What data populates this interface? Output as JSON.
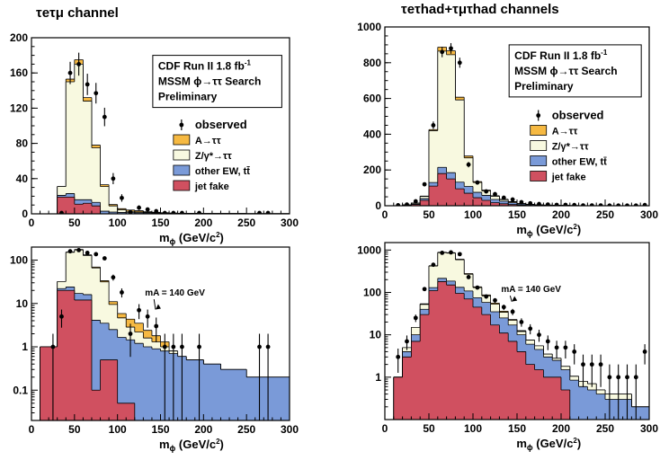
{
  "chart_data": [
    {
      "id": "top_left",
      "type": "area",
      "title": "τeτμ channel",
      "xlabel": "mϕ (GeV/c²)",
      "ylabel": "",
      "xlim": [
        0,
        300
      ],
      "ylim": [
        0,
        200
      ],
      "yscale": "linear",
      "xticks": [
        "0",
        "50",
        "100",
        "150",
        "200",
        "250",
        "300"
      ],
      "yticks": [
        "0",
        "40",
        "80",
        "120",
        "160",
        "200"
      ],
      "bin_edges": [
        0,
        10,
        20,
        30,
        40,
        50,
        60,
        70,
        80,
        90,
        100,
        110,
        120,
        130,
        140,
        150,
        160,
        170,
        180,
        190,
        200,
        210,
        220,
        230,
        240,
        250,
        260,
        270,
        280,
        290,
        300
      ],
      "stack": [
        {
          "name": "jet fake",
          "color": "#d05060",
          "values": [
            0,
            0,
            0,
            19,
            19,
            11,
            12,
            9,
            0,
            0,
            0,
            0,
            0,
            0,
            0,
            0,
            0,
            0,
            0,
            0,
            0,
            0,
            0,
            0,
            0,
            0,
            0,
            0,
            0,
            0
          ]
        },
        {
          "name": "other EW, tt̄",
          "color": "#7a9ad8",
          "values": [
            0,
            0,
            0,
            2,
            4,
            5,
            4,
            4,
            3,
            2,
            1.6,
            1.4,
            1.2,
            1,
            0.9,
            0.8,
            0.7,
            0.6,
            0.5,
            0.5,
            0.4,
            0.4,
            0.3,
            0.3,
            0.3,
            0.2,
            0.2,
            0.2,
            0.2,
            0.2
          ]
        },
        {
          "name": "Z/γ*→ττ",
          "color": "#f8f9e0",
          "values": [
            0,
            0,
            0,
            10,
            127,
            154,
            112,
            62,
            28,
            7,
            3,
            1.4,
            1,
            0.6,
            0.4,
            0.2,
            0.1,
            0,
            0,
            0,
            0,
            0,
            0,
            0,
            0,
            0,
            0,
            0,
            0,
            0
          ]
        },
        {
          "name": "A→ττ",
          "color": "#f6b942",
          "values": [
            0,
            0,
            0,
            0,
            3,
            5,
            4,
            3,
            2,
            1.5,
            1.2,
            1.5,
            1.3,
            0.8,
            0.5,
            0.3,
            0,
            0,
            0,
            0,
            0,
            0,
            0,
            0,
            0,
            0,
            0,
            0,
            0,
            0
          ]
        }
      ],
      "observed": {
        "x": [
          35,
          45,
          55,
          65,
          75,
          85,
          95,
          105,
          115,
          125,
          135,
          145,
          155,
          165,
          175,
          185,
          195,
          205,
          215,
          225,
          235,
          245,
          255,
          265,
          275,
          285,
          295
        ],
        "y": [
          1,
          160,
          170,
          147,
          137,
          110,
          40,
          18,
          2,
          7,
          5,
          3,
          1,
          1,
          1,
          0,
          1,
          0,
          0,
          0,
          0,
          0,
          0,
          1,
          1,
          0,
          0
        ]
      },
      "legend_position": "right",
      "legend": [
        "observed",
        "A→ττ",
        "Z/γ*→ττ",
        "other EW, tt̄",
        "jet fake"
      ],
      "infobox": [
        "CDF Run II  1.8 fb",
        "-1",
        "MSSM ϕ→ττ Search",
        "Preliminary"
      ]
    },
    {
      "id": "top_right",
      "type": "area",
      "title": "τeτhad+τμτhad channels",
      "xlabel": "mϕ (GeV/c²)",
      "ylabel": "",
      "xlim": [
        0,
        300
      ],
      "ylim": [
        0,
        1000
      ],
      "yscale": "linear",
      "xticks": [
        "0",
        "50",
        "100",
        "150",
        "200",
        "250",
        "300"
      ],
      "yticks": [
        "0",
        "200",
        "400",
        "600",
        "800",
        "1000"
      ],
      "bin_edges": [
        0,
        10,
        20,
        30,
        40,
        50,
        60,
        70,
        80,
        90,
        100,
        110,
        120,
        130,
        140,
        150,
        160,
        170,
        180,
        190,
        200,
        210,
        220,
        230,
        240,
        250,
        260,
        270,
        280,
        290,
        300
      ],
      "stack": [
        {
          "name": "jet fake",
          "color": "#d05060",
          "values": [
            0,
            0,
            3,
            7,
            30,
            110,
            180,
            150,
            95,
            70,
            45,
            30,
            17,
            11,
            7,
            4,
            2,
            1.5,
            1,
            1,
            0.5,
            0,
            0,
            0,
            0,
            0,
            0,
            0,
            0,
            0
          ]
        },
        {
          "name": "other EW, tt̄",
          "color": "#7a9ad8",
          "values": [
            0,
            0,
            1,
            3,
            10,
            20,
            35,
            35,
            37,
            38,
            30,
            28,
            18,
            14,
            10,
            6,
            4,
            3,
            2,
            1.5,
            1,
            0.8,
            0.6,
            0.5,
            0.4,
            0.3,
            0.3,
            0.3,
            0.2,
            0.2
          ]
        },
        {
          "name": "Z/γ*→ττ",
          "color": "#f8f9e0",
          "values": [
            0,
            0,
            1,
            5,
            12,
            290,
            650,
            660,
            460,
            160,
            55,
            25,
            18,
            9,
            5,
            2,
            1.5,
            1,
            0.5,
            0.3,
            0.3,
            0.2,
            0.2,
            0.2,
            0.1,
            0.1,
            0.1,
            0.1,
            0,
            0
          ]
        },
        {
          "name": "A→ττ",
          "color": "#f6b942",
          "values": [
            0,
            0,
            0,
            0,
            2,
            6,
            22,
            22,
            15,
            10,
            5,
            4,
            3,
            2,
            1,
            0.5,
            0,
            0,
            0,
            0,
            0,
            0,
            0,
            0,
            0,
            0,
            0,
            0,
            0,
            0
          ]
        }
      ],
      "observed": {
        "x": [
          15,
          25,
          35,
          45,
          55,
          65,
          75,
          85,
          95,
          105,
          115,
          125,
          135,
          145,
          155,
          165,
          175,
          185,
          195,
          205,
          215,
          225,
          235,
          245,
          255,
          265,
          275,
          285,
          295
        ],
        "y": [
          3,
          7,
          25,
          120,
          450,
          860,
          880,
          800,
          230,
          130,
          80,
          65,
          45,
          35,
          20,
          14,
          10,
          7,
          5,
          5,
          4,
          2,
          2,
          2,
          1,
          1,
          1,
          1,
          4
        ]
      },
      "legend_position": "right",
      "legend": [
        "observed",
        "A→ττ",
        "Z/γ*→ττ",
        "other EW, tt̄",
        "jet fake"
      ],
      "infobox": [
        "CDF Run II  1.8 fb",
        "-1",
        "MSSM ϕ→ττ Search",
        "Preliminary"
      ]
    },
    {
      "id": "bottom_left",
      "type": "area",
      "title": "",
      "xlabel": "mϕ (GeV/c²)",
      "ylabel": "",
      "xlim": [
        0,
        300
      ],
      "ylim": [
        0.02,
        200
      ],
      "yscale": "log",
      "xticks": [
        "0",
        "50",
        "100",
        "150",
        "200",
        "250",
        "300"
      ],
      "yticks": [
        "0.1",
        "1",
        "10",
        "100"
      ],
      "bin_edges": [
        0,
        10,
        20,
        30,
        40,
        50,
        60,
        70,
        80,
        90,
        100,
        110,
        120,
        130,
        140,
        150,
        160,
        170,
        180,
        190,
        200,
        210,
        220,
        230,
        240,
        250,
        260,
        270,
        280,
        290,
        300
      ],
      "stack": [
        {
          "name": "jet fake",
          "color": "#d05060",
          "values": [
            0,
            1,
            1,
            20,
            20,
            12,
            12,
            0.1,
            0.5,
            0.5,
            0.05,
            0.05,
            0,
            0,
            0,
            0,
            0,
            0,
            0,
            0,
            0,
            0,
            0,
            0,
            0,
            0,
            0,
            0,
            0,
            0
          ]
        },
        {
          "name": "other EW, tt̄",
          "color": "#7a9ad8",
          "values": [
            0,
            0,
            0,
            2,
            4,
            5,
            4,
            4,
            3,
            2,
            1.6,
            1.4,
            1.2,
            1,
            0.9,
            0.8,
            0.7,
            0.6,
            0.5,
            0.5,
            0.4,
            0.4,
            0.3,
            0.3,
            0.3,
            0.2,
            0.2,
            0.2,
            0.2,
            0.2
          ]
        },
        {
          "name": "Z/γ*→ττ",
          "color": "#f8f9e0",
          "values": [
            0,
            0,
            0,
            10,
            127,
            154,
            112,
            62,
            28,
            7,
            3,
            1.4,
            1,
            0.6,
            0.4,
            0.2,
            0.1,
            0,
            0,
            0,
            0,
            0,
            0,
            0,
            0,
            0,
            0,
            0,
            0,
            0
          ]
        },
        {
          "name": "A→ττ",
          "color": "#f6b942",
          "values": [
            0,
            0,
            0,
            0,
            3,
            5,
            4,
            3,
            2,
            1.5,
            1.2,
            1.5,
            1.3,
            0.8,
            0.5,
            0.3,
            0,
            0,
            0,
            0,
            0,
            0,
            0,
            0,
            0,
            0,
            0,
            0,
            0,
            0
          ]
        }
      ],
      "observed": {
        "x": [
          25,
          35,
          45,
          55,
          65,
          75,
          85,
          95,
          105,
          115,
          125,
          135,
          145,
          155,
          165,
          175,
          185,
          195,
          205,
          215,
          225,
          235,
          245,
          255,
          265,
          275,
          285,
          295
        ],
        "y": [
          1,
          5,
          160,
          170,
          147,
          137,
          110,
          40,
          18,
          2,
          7,
          5,
          3,
          1,
          1,
          1,
          0,
          1,
          0,
          0,
          0,
          0,
          0,
          0,
          1,
          1,
          0,
          0
        ]
      },
      "annotation": "mA = 140 GeV"
    },
    {
      "id": "bottom_right",
      "type": "area",
      "title": "",
      "xlabel": "mϕ (GeV/c²)",
      "ylabel": "",
      "xlim": [
        0,
        300
      ],
      "ylim": [
        0.1,
        1500
      ],
      "yscale": "log",
      "xticks": [
        "0",
        "50",
        "100",
        "150",
        "200",
        "250",
        "300"
      ],
      "yticks": [
        "1",
        "10",
        "100",
        "1000"
      ],
      "bin_edges": [
        0,
        10,
        20,
        30,
        40,
        50,
        60,
        70,
        80,
        90,
        100,
        110,
        120,
        130,
        140,
        150,
        160,
        170,
        180,
        190,
        200,
        210,
        220,
        230,
        240,
        250,
        260,
        270,
        280,
        290,
        300
      ],
      "stack": [
        {
          "name": "jet fake",
          "color": "#d05060",
          "values": [
            0,
            1,
            3,
            7,
            30,
            110,
            180,
            150,
            95,
            70,
            45,
            30,
            17,
            11,
            7,
            4,
            2,
            1.5,
            1,
            1,
            0.5,
            0.05,
            0,
            0,
            0,
            0,
            0,
            0,
            0,
            0
          ]
        },
        {
          "name": "other EW, tt̄",
          "color": "#7a9ad8",
          "values": [
            0,
            0,
            1,
            3,
            10,
            20,
            35,
            35,
            37,
            38,
            30,
            28,
            18,
            14,
            10,
            6,
            4,
            3,
            2,
            1.5,
            1,
            0.8,
            0.6,
            0.5,
            0.4,
            0.3,
            0.3,
            0.3,
            0.2,
            0.2
          ]
        },
        {
          "name": "Z/γ*→ττ",
          "color": "#f8f9e0",
          "values": [
            0,
            0,
            1,
            5,
            12,
            290,
            650,
            660,
            460,
            160,
            55,
            25,
            18,
            9,
            5,
            2,
            1.5,
            1,
            0.5,
            0.3,
            0.3,
            0.2,
            0.2,
            0.2,
            0.1,
            0.1,
            0.1,
            0.1,
            0,
            0
          ]
        },
        {
          "name": "A→ττ",
          "color": "#f6b942",
          "values": [
            0,
            0,
            0,
            0,
            2,
            6,
            22,
            22,
            15,
            10,
            5,
            4,
            3,
            2,
            1,
            0.5,
            0,
            0,
            0,
            0,
            0,
            0,
            0,
            0,
            0,
            0,
            0,
            0,
            0,
            0
          ]
        }
      ],
      "observed": {
        "x": [
          15,
          25,
          35,
          45,
          55,
          65,
          75,
          85,
          95,
          105,
          115,
          125,
          135,
          145,
          155,
          165,
          175,
          185,
          195,
          205,
          215,
          225,
          235,
          245,
          255,
          265,
          275,
          285,
          295
        ],
        "y": [
          3,
          7,
          25,
          120,
          450,
          860,
          880,
          800,
          230,
          130,
          80,
          65,
          45,
          35,
          20,
          14,
          10,
          7,
          5,
          5,
          4,
          2,
          2,
          2,
          1,
          1,
          1,
          1,
          4
        ]
      },
      "annotation": "mA = 140 GeV"
    }
  ]
}
